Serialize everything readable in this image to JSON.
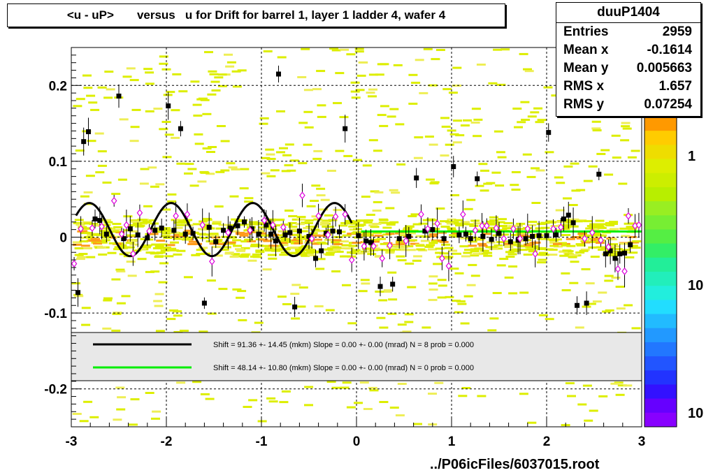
{
  "chart_data": {
    "type": "scatter",
    "title": "<u - uP>       versus   u for Drift for barrel 1, layer 1 ladder 4, wafer 4",
    "xlim": [
      -3,
      3
    ],
    "ylim": [
      -0.25,
      0.25
    ],
    "x_ticks": [
      -3,
      -2,
      -1,
      0,
      1,
      2,
      3
    ],
    "x_tick_labels": [
      "-3",
      "-2",
      "-1",
      "0",
      "1",
      "2",
      "3"
    ],
    "y_ticks": [
      -0.2,
      -0.1,
      0,
      0.1,
      0.2
    ],
    "y_tick_labels": [
      "-0.2",
      "-0.1",
      "0",
      "0.1",
      "0.2"
    ],
    "grid": true,
    "stats": {
      "name": "duuP1404",
      "rows": [
        {
          "label": "Entries",
          "value": "2959"
        },
        {
          "label": "Mean x",
          "value": "-0.1614"
        },
        {
          "label": "Mean y",
          "value": "0.005663"
        },
        {
          "label": "RMS x",
          "value": "1.657"
        },
        {
          "label": "RMS y",
          "value": "0.07254"
        }
      ]
    },
    "legend": [
      {
        "color": "#000000",
        "text": "Shift =    91.36 +- 14.45 (mkm) Slope =     0.00 +- 0.00 (mrad)  N = 8 prob = 0.000"
      },
      {
        "color": "#00ee00",
        "text": "Shift =    48.14 +- 10.80 (mkm) Slope =     0.00 +- 0.00 (mrad)  N = 0 prob = 0.000"
      }
    ],
    "colorbar_labels": [
      "1",
      "10",
      "10"
    ],
    "colors": {
      "black_fit": "#000000",
      "green_fit": "#00ee00",
      "open_marker": "#dd00dd"
    },
    "black_points": [
      [
        -2.93,
        -0.073
      ],
      [
        -2.87,
        0.126
      ],
      [
        -2.82,
        0.139
      ],
      [
        -2.75,
        0.024
      ],
      [
        -2.7,
        0.022
      ],
      [
        -2.63,
        0.004
      ],
      [
        -2.5,
        0.186
      ],
      [
        -2.45,
        -0.002
      ],
      [
        -2.38,
        0.011
      ],
      [
        -2.3,
        0.003
      ],
      [
        -2.2,
        -0.001
      ],
      [
        -2.12,
        0.009
      ],
      [
        -2.05,
        0.012
      ],
      [
        -1.98,
        0.173
      ],
      [
        -1.92,
        0.009
      ],
      [
        -1.85,
        0.143
      ],
      [
        -1.8,
        0.004
      ],
      [
        -1.72,
        0.005
      ],
      [
        -1.6,
        -0.087
      ],
      [
        -1.55,
        0.013
      ],
      [
        -1.48,
        -0.006
      ],
      [
        -1.4,
        0.009
      ],
      [
        -1.33,
        0.012
      ],
      [
        -1.25,
        0.015
      ],
      [
        -1.18,
        0.02
      ],
      [
        -1.1,
        0.011
      ],
      [
        -1.03,
        0.004
      ],
      [
        -0.95,
        0.016
      ],
      [
        -0.9,
        0.004
      ],
      [
        -0.85,
        -0.005
      ],
      [
        -0.82,
        0.215
      ],
      [
        -0.75,
        0.003
      ],
      [
        -0.7,
        0.006
      ],
      [
        -0.65,
        -0.092
      ],
      [
        -0.6,
        0.008
      ],
      [
        -0.5,
        0.001
      ],
      [
        -0.43,
        -0.028
      ],
      [
        -0.37,
        -0.018
      ],
      [
        -0.32,
        0.005
      ],
      [
        -0.25,
        0.008
      ],
      [
        -0.18,
        0.007
      ],
      [
        -0.12,
        0.143
      ],
      [
        0.02,
        0.002
      ],
      [
        0.1,
        -0.005
      ],
      [
        0.15,
        -0.007
      ],
      [
        0.25,
        -0.065
      ],
      [
        0.38,
        -0.062
      ],
      [
        0.45,
        -0.002
      ],
      [
        0.55,
        0.001
      ],
      [
        0.63,
        0.078
      ],
      [
        0.72,
        0.008
      ],
      [
        0.8,
        0.01
      ],
      [
        0.92,
        -0.002
      ],
      [
        1.02,
        0.093
      ],
      [
        1.08,
        0.003
      ],
      [
        1.15,
        0.004
      ],
      [
        1.2,
        -0.002
      ],
      [
        1.27,
        0.077
      ],
      [
        1.33,
        0.001
      ],
      [
        1.42,
        -0.003
      ],
      [
        1.5,
        0.005
      ],
      [
        1.62,
        -0.006
      ],
      [
        1.7,
        -0.004
      ],
      [
        1.78,
        -0.002
      ],
      [
        1.85,
        0.001
      ],
      [
        1.92,
        0.002
      ],
      [
        2.0,
        0.002
      ],
      [
        2.02,
        0.138
      ],
      [
        2.1,
        0.003
      ],
      [
        2.18,
        0.024
      ],
      [
        2.23,
        0.029
      ],
      [
        2.28,
        0.019
      ],
      [
        2.32,
        -0.09
      ],
      [
        2.42,
        -0.087
      ],
      [
        2.55,
        0.083
      ],
      [
        2.62,
        -0.022
      ],
      [
        2.67,
        -0.018
      ],
      [
        2.72,
        -0.028
      ],
      [
        2.77,
        -0.022
      ],
      [
        2.82,
        -0.021
      ],
      [
        2.88,
        -0.01
      ]
    ],
    "open_points": [
      [
        -2.97,
        -0.035
      ],
      [
        -2.9,
        0.011
      ],
      [
        -2.78,
        0.012
      ],
      [
        -2.68,
        0.014
      ],
      [
        -2.55,
        0.048
      ],
      [
        -2.47,
        0.004
      ],
      [
        -2.42,
        0.016
      ],
      [
        -2.35,
        -0.022
      ],
      [
        -2.28,
        0.032
      ],
      [
        -2.18,
        0.008
      ],
      [
        -1.9,
        0.028
      ],
      [
        -1.78,
        0.03
      ],
      [
        -1.62,
        0.016
      ],
      [
        -1.52,
        -0.032
      ],
      [
        -1.35,
        0.006
      ],
      [
        -1.12,
        0.009
      ],
      [
        -0.97,
        0.022
      ],
      [
        -0.88,
        0.016
      ],
      [
        -0.77,
        0.013
      ],
      [
        -0.57,
        0.055
      ],
      [
        -0.47,
        -0.002
      ],
      [
        -0.4,
        0.028
      ],
      [
        -0.3,
        0.003
      ],
      [
        -0.22,
        0.027
      ],
      [
        -0.12,
        0.03
      ],
      [
        -0.05,
        -0.03
      ],
      [
        0.08,
        -0.012
      ],
      [
        0.18,
        -0.012
      ],
      [
        0.27,
        -0.028
      ],
      [
        0.35,
        -0.011
      ],
      [
        0.52,
        -0.005
      ],
      [
        0.68,
        0.03
      ],
      [
        0.75,
        0.011
      ],
      [
        0.85,
        0.018
      ],
      [
        0.9,
        -0.028
      ],
      [
        0.97,
        -0.038
      ],
      [
        1.12,
        0.03
      ],
      [
        1.25,
        0.009
      ],
      [
        1.32,
        0.015
      ],
      [
        1.37,
        0.015
      ],
      [
        1.47,
        0.012
      ],
      [
        1.55,
        -0.002
      ],
      [
        1.65,
        0.011
      ],
      [
        1.72,
        -0.002
      ],
      [
        1.8,
        0.011
      ],
      [
        1.88,
        -0.022
      ],
      [
        2.07,
        0.011
      ],
      [
        2.15,
        0.013
      ],
      [
        2.4,
        -0.002
      ],
      [
        2.48,
        0.006
      ],
      [
        2.57,
        -0.004
      ],
      [
        2.65,
        -0.013
      ],
      [
        2.75,
        -0.042
      ],
      [
        2.82,
        -0.045
      ],
      [
        2.86,
        0.028
      ],
      [
        2.93,
        0.015
      ],
      [
        2.97,
        0.016
      ]
    ]
  },
  "footer": "../P06icFiles/6037015.root"
}
